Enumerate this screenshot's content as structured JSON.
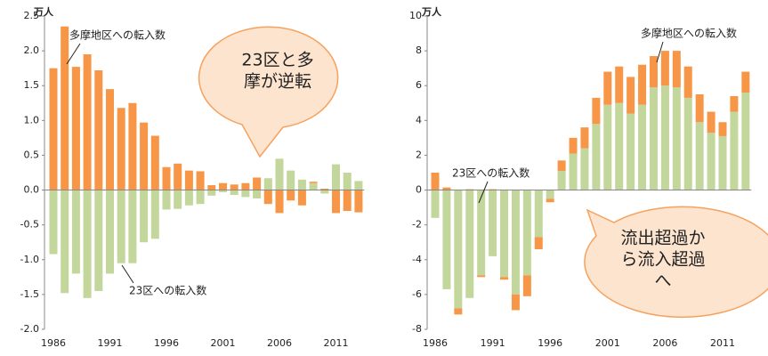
{
  "chart_data": [
    {
      "type": "bar",
      "stacked": true,
      "unit": "万人",
      "categories": [
        1986,
        null,
        null,
        null,
        null,
        1991,
        null,
        null,
        null,
        null,
        1996,
        null,
        null,
        null,
        null,
        2001,
        null,
        null,
        null,
        null,
        2006,
        null,
        null,
        null,
        null,
        2011,
        null,
        null
      ],
      "series": [
        {
          "name": "23区への転入数",
          "color": "#c3d69b",
          "values": [
            -0.92,
            -1.48,
            -1.2,
            -1.55,
            -1.45,
            -1.2,
            -1.05,
            -1.05,
            -0.75,
            -0.7,
            -0.28,
            -0.27,
            -0.22,
            -0.2,
            -0.08,
            -0.03,
            -0.07,
            -0.1,
            -0.12,
            0.17,
            0.45,
            0.28,
            0.15,
            0.1,
            -0.05,
            0.37,
            0.25,
            0.13
          ]
        },
        {
          "name": "多摩地区への転入数",
          "color": "#f79646",
          "values": [
            1.75,
            2.35,
            1.77,
            1.95,
            1.72,
            1.45,
            1.18,
            1.25,
            0.97,
            0.78,
            0.33,
            0.38,
            0.28,
            0.27,
            0.07,
            0.1,
            0.08,
            0.1,
            0.18,
            -0.2,
            -0.33,
            -0.15,
            -0.22,
            0.02,
            0.02,
            -0.33,
            -0.3,
            -0.32
          ]
        }
      ],
      "ylim": [
        -2,
        2.5
      ],
      "yticks": [
        {
          "value": 2.5,
          "label": "2.5"
        },
        {
          "value": 2,
          "label": "2.0"
        },
        {
          "value": 1.5,
          "label": "1.5"
        },
        {
          "value": 1,
          "label": "1.0"
        },
        {
          "value": 0.5,
          "label": "0.5"
        },
        {
          "value": 0,
          "label": "0.0"
        },
        {
          "value": -0.5,
          "label": "-0.5"
        },
        {
          "value": -1,
          "label": "-1.0"
        },
        {
          "value": -1.5,
          "label": "-1.5"
        },
        {
          "value": -2,
          "label": "-2.0"
        }
      ],
      "bubble": [
        "23区と多",
        "摩が逆転"
      ]
    },
    {
      "type": "bar",
      "stacked": true,
      "unit": "万人",
      "categories": [
        1986,
        null,
        null,
        null,
        null,
        1991,
        null,
        null,
        null,
        null,
        1996,
        null,
        null,
        null,
        null,
        2001,
        null,
        null,
        null,
        null,
        2006,
        null,
        null,
        null,
        null,
        2011,
        null,
        null
      ],
      "series": [
        {
          "name": "23区への転入数",
          "color": "#c3d69b",
          "values": [
            -1.6,
            -5.7,
            -6.8,
            -6.2,
            -4.9,
            -3.8,
            -5.0,
            -6.0,
            -4.9,
            -2.7,
            -0.5,
            1.1,
            2.1,
            2.4,
            3.8,
            4.9,
            5.0,
            4.4,
            4.9,
            5.9,
            6.0,
            5.9,
            5.3,
            3.9,
            3.3,
            3.1,
            4.5,
            5.6
          ]
        },
        {
          "name": "多摩地区への転入数",
          "color": "#f79646",
          "values": [
            1.0,
            0.15,
            -0.35,
            0.05,
            -0.1,
            0.05,
            -0.15,
            -0.9,
            -1.2,
            -0.7,
            -0.2,
            0.6,
            0.9,
            1.2,
            1.5,
            1.9,
            2.1,
            2.1,
            2.3,
            1.8,
            2.0,
            2.1,
            1.8,
            1.6,
            1.2,
            0.8,
            0.9,
            1.2
          ]
        }
      ],
      "ylim": [
        -8,
        10
      ],
      "yticks": [
        10,
        8,
        6,
        4,
        2,
        0,
        -2,
        -4,
        -6,
        -8
      ],
      "bubble": [
        "流出超過か",
        "ら流入超過",
        "へ"
      ]
    }
  ]
}
